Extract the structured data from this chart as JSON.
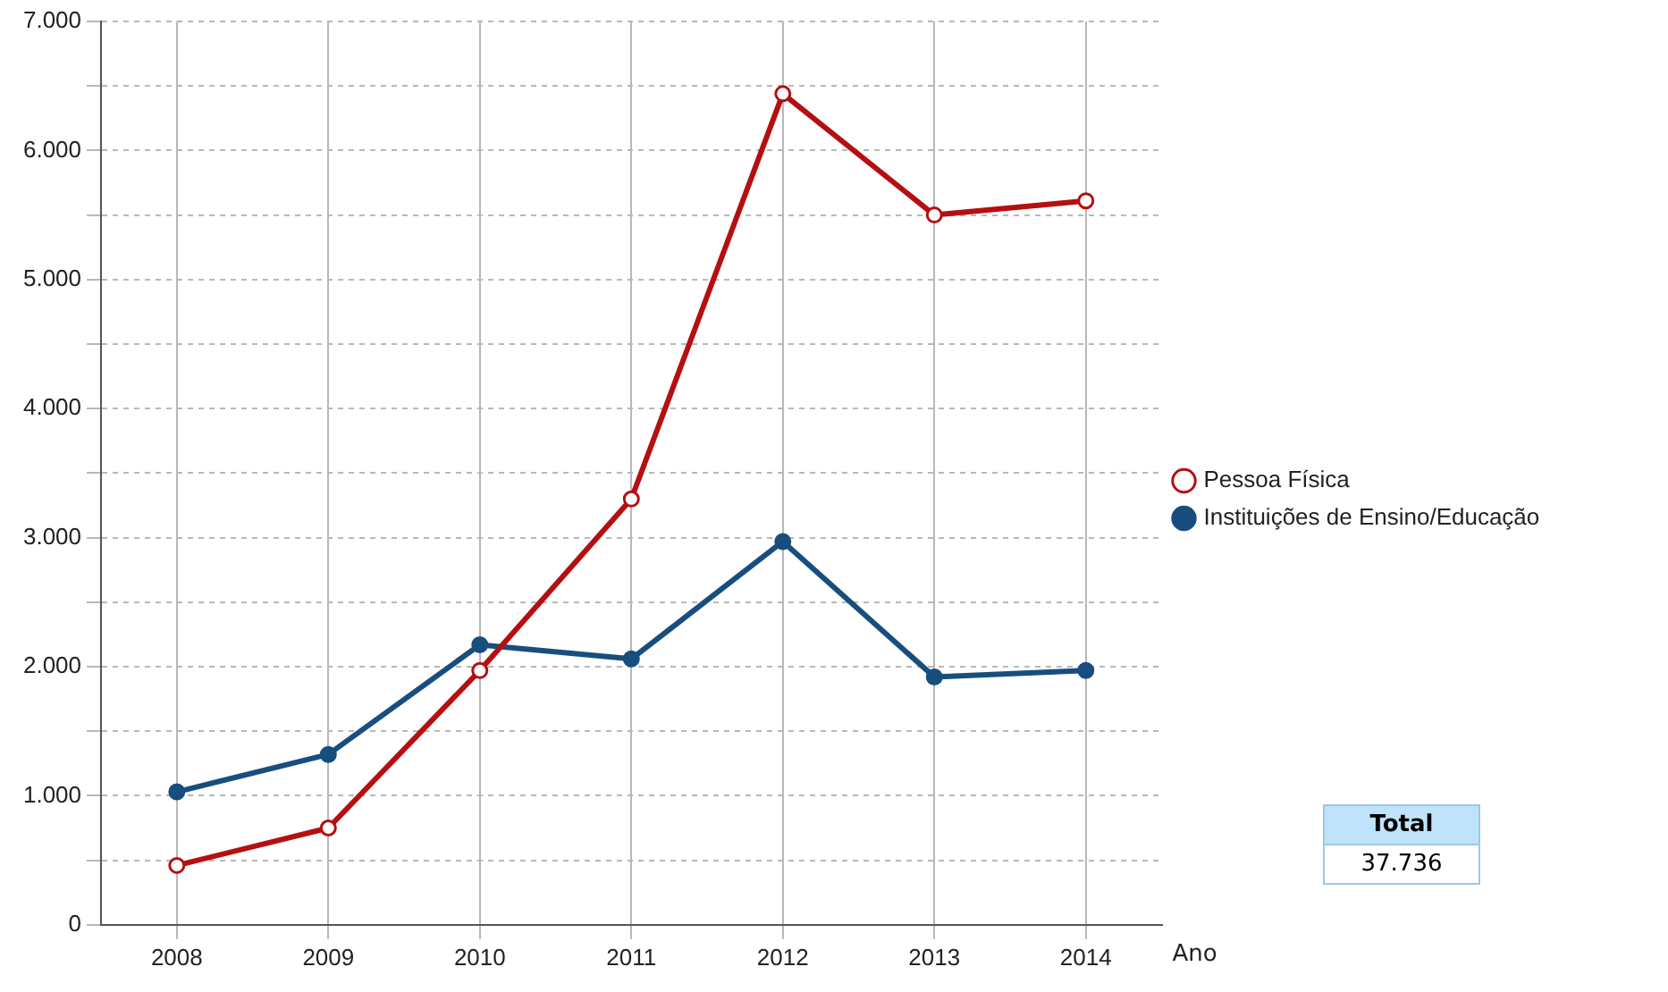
{
  "chart_data": {
    "type": "line",
    "xlabel": "Ano",
    "categories": [
      "2008",
      "2009",
      "2010",
      "2011",
      "2012",
      "2013",
      "2014"
    ],
    "series": [
      {
        "name": "Pessoa Física",
        "color": "#b50f12",
        "values": [
          460,
          750,
          1970,
          3300,
          6440,
          5500,
          5610
        ]
      },
      {
        "name": "Instituições de Ensino/Educação",
        "color": "#174e7e",
        "values": [
          1030,
          1320,
          2170,
          2060,
          2970,
          1920,
          1970
        ]
      }
    ],
    "ylim": [
      0,
      7000
    ],
    "yticks": [
      {
        "value": 0,
        "label": "0"
      },
      {
        "value": 500,
        "label": null
      },
      {
        "value": 1000,
        "label": "1.000"
      },
      {
        "value": 1500,
        "label": null
      },
      {
        "value": 2000,
        "label": "2.000"
      },
      {
        "value": 2500,
        "label": null
      },
      {
        "value": 3000,
        "label": "3.000"
      },
      {
        "value": 3500,
        "label": null
      },
      {
        "value": 4000,
        "label": "4.000"
      },
      {
        "value": 4500,
        "label": null
      },
      {
        "value": 5000,
        "label": "5.000"
      },
      {
        "value": 5500,
        "label": null
      },
      {
        "value": 6000,
        "label": "6.000"
      },
      {
        "value": 6500,
        "label": null
      },
      {
        "value": 7000,
        "label": "7.000"
      }
    ],
    "grid": true,
    "legend": "right",
    "marker": "circle",
    "line_style": "solid",
    "annotations": [
      "Total",
      "37.736"
    ]
  }
}
